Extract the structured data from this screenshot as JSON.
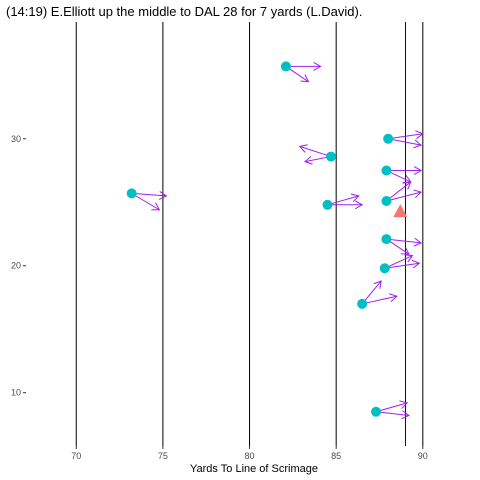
{
  "chart_data": {
    "type": "scatter",
    "title": "(14:19) E.Elliott up the middle to DAL 28 for 7 yards (L.David).",
    "xlabel": "Yards To Line of Scrimage",
    "ylabel": "",
    "xlim": [
      67.1,
      93.3
    ],
    "ylim": [
      5.8,
      39.2
    ],
    "x_ticks": [
      70,
      75,
      80,
      85,
      90
    ],
    "y_ticks": [
      10,
      20,
      30
    ],
    "grid": false,
    "yard_lines": [
      70,
      75,
      80,
      85,
      90
    ],
    "line_of_scrimmage": 89,
    "colors": {
      "player": "#00BFC4",
      "ball": "#F8766D",
      "arrow": "#A020F0",
      "line_of_scrimmage": "#000080",
      "yard_line": "#000000"
    },
    "players": [
      {
        "x": 82.1,
        "y": 35.7,
        "vx": 2.0,
        "vy": 0.0,
        "sx": 1.3,
        "sy": -1.2
      },
      {
        "x": 88.0,
        "y": 30.0,
        "vx": 2.0,
        "vy": 0.4,
        "sx": 1.9,
        "sy": -0.5
      },
      {
        "x": 84.7,
        "y": 28.6,
        "vx": -1.8,
        "vy": 0.8,
        "sx": -1.5,
        "sy": -0.4
      },
      {
        "x": 87.9,
        "y": 27.5,
        "vx": 2.0,
        "vy": 0.0,
        "sx": 1.4,
        "sy": -0.9
      },
      {
        "x": 73.2,
        "y": 25.7,
        "vx": 2.0,
        "vy": -0.2,
        "sx": 1.6,
        "sy": -1.3
      },
      {
        "x": 84.5,
        "y": 24.8,
        "vx": 1.8,
        "vy": 0.7,
        "sx": 2.0,
        "sy": 0.0
      },
      {
        "x": 87.9,
        "y": 25.1,
        "vx": 2.0,
        "vy": 0.7,
        "sx": 1.4,
        "sy": 1.5
      },
      {
        "x": 87.9,
        "y": 22.1,
        "vx": 2.0,
        "vy": -0.3,
        "sx": 1.3,
        "sy": -1.2
      },
      {
        "x": 87.8,
        "y": 19.8,
        "vx": 2.0,
        "vy": 0.4,
        "sx": 1.6,
        "sy": 1.0
      },
      {
        "x": 86.5,
        "y": 17.0,
        "vx": 2.0,
        "vy": 0.6,
        "sx": 1.1,
        "sy": 1.8
      },
      {
        "x": 87.3,
        "y": 8.5,
        "vx": 1.9,
        "vy": -0.3,
        "sx": 1.8,
        "sy": 0.7
      }
    ],
    "ball": {
      "x": 88.7,
      "y": 24.3
    }
  }
}
